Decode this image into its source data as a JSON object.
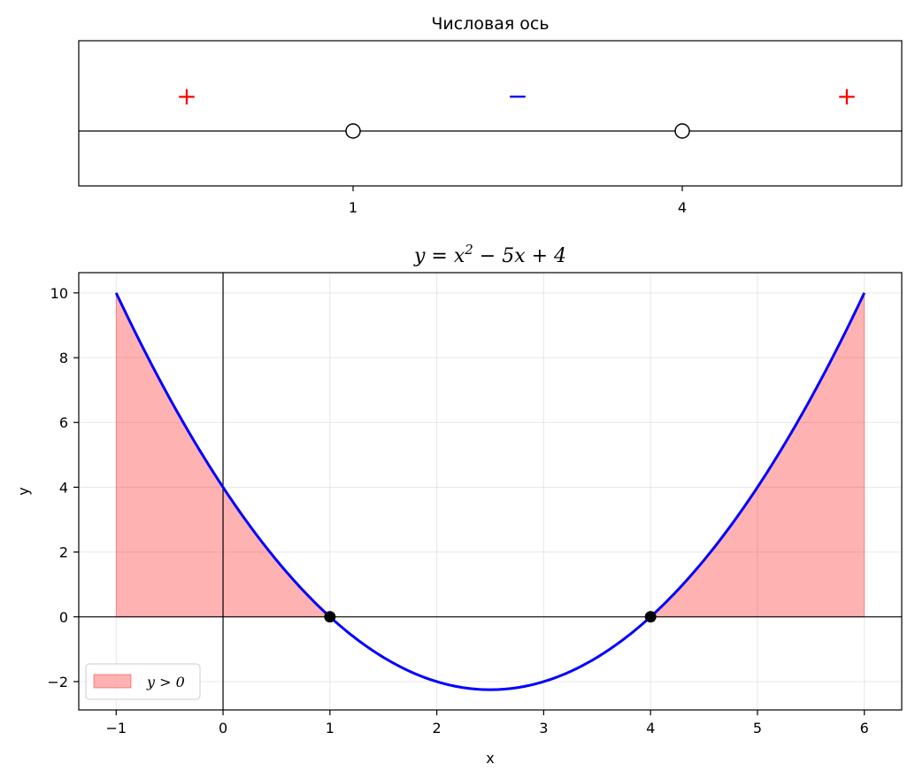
{
  "chart_data": [
    {
      "type": "number-line",
      "title": "Числовая ось",
      "points": [
        {
          "x": 1,
          "label": "1",
          "open": true
        },
        {
          "x": 4,
          "label": "4",
          "open": true
        }
      ],
      "signs": [
        {
          "interval": "x<1",
          "symbol": "+",
          "color": "#ff0000"
        },
        {
          "interval": "1<x<4",
          "symbol": "−",
          "color": "#0000ff"
        },
        {
          "interval": "x>4",
          "symbol": "+",
          "color": "#ff0000"
        }
      ]
    },
    {
      "type": "line",
      "title": {
        "pre": "y = x",
        "sup": "2",
        "post": " − 5x + 4"
      },
      "xlabel": "x",
      "ylabel": "y",
      "function": {
        "a": 1,
        "b": -5,
        "c": 4
      },
      "xrange": [
        -1,
        6
      ],
      "xlim": [
        -1.35,
        6.35
      ],
      "ylim": [
        -2.875,
        10.625
      ],
      "xticks": [
        -1,
        0,
        1,
        2,
        3,
        4,
        5,
        6
      ],
      "yticks": [
        -2,
        0,
        2,
        4,
        6,
        8,
        10
      ],
      "xtick_labels": [
        "−1",
        "0",
        "1",
        "2",
        "3",
        "4",
        "5",
        "6"
      ],
      "ytick_labels": [
        "−2",
        "0",
        "2",
        "4",
        "6",
        "8",
        "10"
      ],
      "roots": [
        {
          "x": 1,
          "y": 0
        },
        {
          "x": 4,
          "y": 0
        }
      ],
      "grid": true,
      "line_color": "#0000ff",
      "fill_color": "#ff0000",
      "legend": {
        "label": "y > 0",
        "position": "lower-left"
      }
    }
  ]
}
